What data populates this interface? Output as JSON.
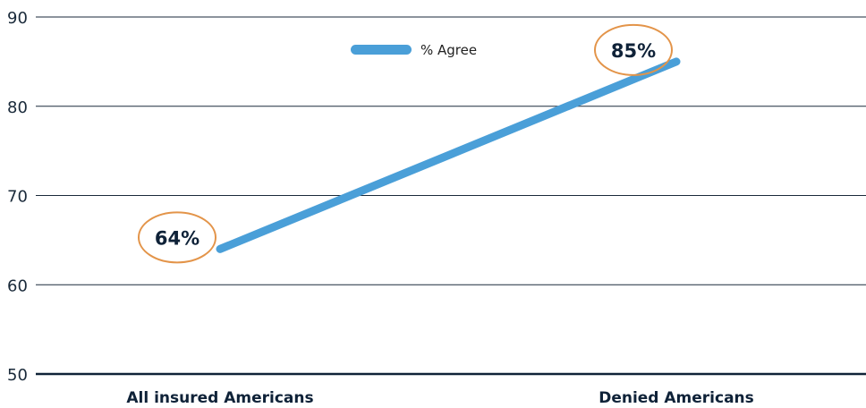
{
  "chart_data": {
    "type": "line",
    "categories": [
      "All insured Americans",
      "Denied Americans"
    ],
    "series": [
      {
        "name": "% Agree",
        "values": [
          64,
          85
        ],
        "data_labels": [
          "64%",
          "85%"
        ]
      }
    ],
    "ylim": [
      50,
      90
    ],
    "yticks": [
      50,
      60,
      70,
      80,
      90
    ],
    "grid": true,
    "legend_position": "top-center",
    "colors": {
      "line": "#4a9fd8",
      "highlight_ring": "#e39449",
      "axis": "#0f2238",
      "grid": "#1a2a3a",
      "text": "#0f2238"
    }
  }
}
